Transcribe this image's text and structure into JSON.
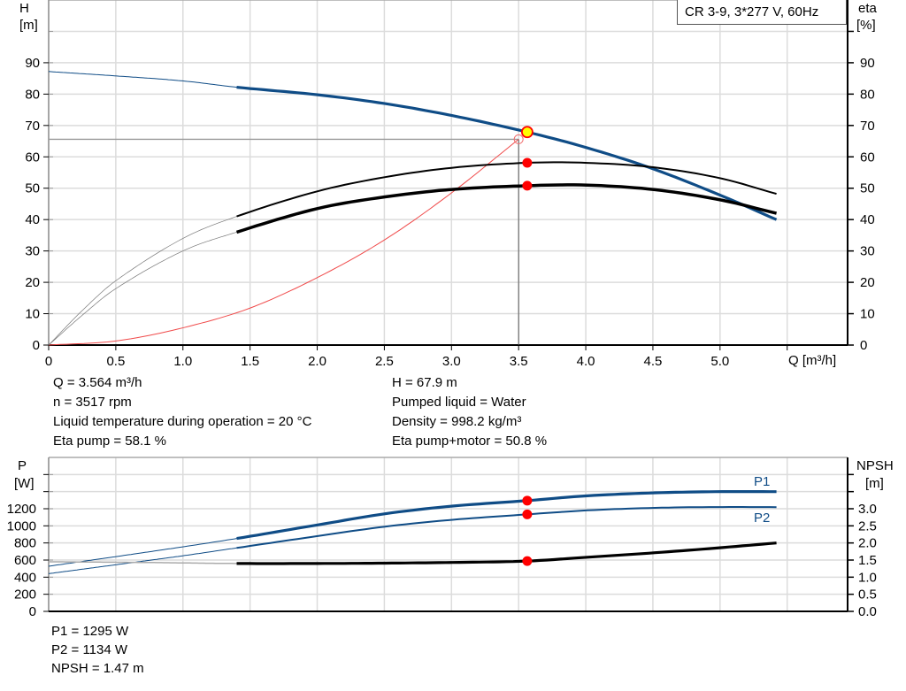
{
  "chart_data": [
    {
      "type": "line",
      "title": "CR 3-9, 3*277 V, 60Hz",
      "xlabel": "Q [m³/h]",
      "ylabel": "H\n[m]",
      "ylabel_left": {
        "name": "H",
        "unit": "[m]"
      },
      "ylabel_right": {
        "name": "eta",
        "unit": "[%]"
      },
      "xlim": [
        0,
        5.95
      ],
      "ylim": [
        0,
        110
      ],
      "y2lim": [
        0,
        110
      ],
      "x_ticks": [
        "0",
        "0.5",
        "1.0",
        "1.5",
        "2.0",
        "2.5",
        "3.0",
        "3.5",
        "4.0",
        "4.5",
        "5.0"
      ],
      "y_ticks": [
        "0",
        "10",
        "20",
        "30",
        "40",
        "50",
        "60",
        "70",
        "80",
        "90"
      ],
      "y2_ticks": [
        "0",
        "10",
        "20",
        "30",
        "40",
        "50",
        "60",
        "70",
        "80",
        "90"
      ],
      "grid": true,
      "legend": "top-right",
      "operating_range_start": 1.4,
      "series": [
        {
          "id": "H",
          "axis": "left",
          "color": "#0f4c86",
          "points": [
            [
              0,
              87.2
            ],
            [
              0.5,
              85.8
            ],
            [
              1.0,
              84.2
            ],
            [
              1.4,
              82.2
            ],
            [
              2.0,
              79.8
            ],
            [
              2.5,
              77.0
            ],
            [
              3.0,
              73.2
            ],
            [
              3.564,
              67.9
            ],
            [
              4.0,
              63.0
            ],
            [
              4.5,
              56.2
            ],
            [
              5.0,
              47.8
            ],
            [
              5.42,
              40.0
            ]
          ]
        },
        {
          "id": "eta_pump",
          "axis": "right",
          "color": "#000000",
          "points": [
            [
              0,
              0
            ],
            [
              0.25,
              11
            ],
            [
              0.5,
              20.5
            ],
            [
              1.0,
              34
            ],
            [
              1.4,
              41
            ],
            [
              2.0,
              49
            ],
            [
              2.5,
              53.5
            ],
            [
              3.0,
              56.5
            ],
            [
              3.564,
              58.1
            ],
            [
              4.0,
              58.1
            ],
            [
              4.5,
              56.7
            ],
            [
              5.0,
              53.2
            ],
            [
              5.42,
              48.2
            ]
          ]
        },
        {
          "id": "eta_pump_motor",
          "axis": "right",
          "color": "#000000",
          "points": [
            [
              0,
              0
            ],
            [
              0.25,
              9.5
            ],
            [
              0.5,
              18
            ],
            [
              1.0,
              30
            ],
            [
              1.4,
              36
            ],
            [
              2.0,
              43.5
            ],
            [
              2.5,
              47.2
            ],
            [
              3.0,
              49.6
            ],
            [
              3.564,
              50.8
            ],
            [
              4.0,
              51
            ],
            [
              4.5,
              49.6
            ],
            [
              5.0,
              46.3
            ],
            [
              5.42,
              42
            ]
          ]
        },
        {
          "id": "system",
          "axis": "left",
          "color": "#f04a4a",
          "points": [
            [
              0,
              0
            ],
            [
              0.5,
              1.3
            ],
            [
              1.0,
              5.5
            ],
            [
              1.5,
              11.8
            ],
            [
              2.0,
              21.5
            ],
            [
              2.5,
              33.5
            ],
            [
              3.0,
              48.5
            ],
            [
              3.5,
              65.6
            ]
          ]
        }
      ],
      "duty_point": {
        "Q": 3.564,
        "H": 67.9,
        "eta_pump": 58.1,
        "eta_pump_motor": 50.8
      },
      "requested_point": {
        "Q": 3.5,
        "H": 65.6
      }
    },
    {
      "type": "line",
      "ylabel_left": {
        "name": "P",
        "unit": "[W]"
      },
      "ylabel_right": {
        "name": "NPSH",
        "unit": "[m]"
      },
      "xlim": [
        0,
        5.95
      ],
      "ylim": [
        0,
        1800
      ],
      "y2lim": [
        0,
        4.5
      ],
      "y_ticks": [
        "0",
        "200",
        "400",
        "600",
        "800",
        "1000",
        "1200"
      ],
      "y2_ticks": [
        "0.0",
        "0.5",
        "1.0",
        "1.5",
        "2.0",
        "2.5",
        "3.0"
      ],
      "grid": true,
      "operating_range_start": 1.4,
      "series": [
        {
          "id": "P1",
          "name": "P1",
          "axis": "left",
          "color": "#0f4c86",
          "points": [
            [
              0,
              528
            ],
            [
              0.5,
              640
            ],
            [
              1.0,
              755
            ],
            [
              1.4,
              852
            ],
            [
              2.0,
              1010
            ],
            [
              2.5,
              1140
            ],
            [
              3.0,
              1230
            ],
            [
              3.564,
              1295
            ],
            [
              4.0,
              1350
            ],
            [
              4.5,
              1385
            ],
            [
              5.0,
              1400
            ],
            [
              5.42,
              1400
            ]
          ]
        },
        {
          "id": "P2",
          "name": "P2",
          "axis": "left",
          "color": "#0f4c86",
          "points": [
            [
              0,
              441
            ],
            [
              0.5,
              545
            ],
            [
              1.0,
              650
            ],
            [
              1.4,
              742
            ],
            [
              2.0,
              880
            ],
            [
              2.5,
              990
            ],
            [
              3.0,
              1070
            ],
            [
              3.564,
              1134
            ],
            [
              4.0,
              1180
            ],
            [
              4.5,
              1210
            ],
            [
              5.0,
              1220
            ],
            [
              5.42,
              1219
            ]
          ]
        },
        {
          "id": "NPSH",
          "axis": "right",
          "color": "#000000",
          "points": [
            [
              0,
              1.45
            ],
            [
              0.7,
              1.43
            ],
            [
              1.4,
              1.4
            ],
            [
              2.0,
              1.4
            ],
            [
              2.5,
              1.41
            ],
            [
              3.0,
              1.43
            ],
            [
              3.564,
              1.47
            ],
            [
              4.0,
              1.58
            ],
            [
              4.5,
              1.71
            ],
            [
              5.0,
              1.86
            ],
            [
              5.42,
              2.0
            ]
          ]
        }
      ],
      "duty_point": {
        "Q": 3.564,
        "P1": 1295,
        "P2": 1134,
        "NPSH": 1.47
      }
    }
  ],
  "info_top": {
    "left": [
      "Q = 3.564 m³/h",
      "n = 3517 rpm",
      "Liquid temperature during operation = 20 °C",
      "Eta pump = 58.1 %"
    ],
    "right": [
      "H = 67.9 m",
      "Pumped liquid = Water",
      "Density = 998.2 kg/m³",
      "Eta pump+motor = 50.8 %"
    ]
  },
  "info_bottom": [
    "P1 = 1295 W",
    "P2 = 1134 W",
    "NPSH = 1.47 m"
  ],
  "colors": {
    "pump_blue": "#0f4c86",
    "marker_red": "#ff0000",
    "marker_yellow": "#ffff00",
    "grid": "#dcdcdc"
  }
}
